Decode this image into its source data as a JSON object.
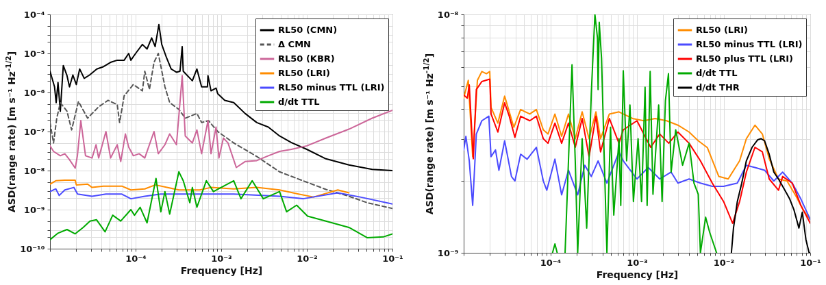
{
  "chart_data": [
    {
      "type": "line",
      "xlabel": "Frequency [Hz]",
      "ylabel": "ASD(range rate) [m s⁻¹ Hz$^{-1/2}$]",
      "log": "xy",
      "grid": true,
      "legend": "top right",
      "xlim": [
        1e-05,
        0.1
      ],
      "ylim": [
        1e-10,
        0.0001
      ],
      "xticks": [
        {
          "value": 1e-05,
          "label": null
        },
        {
          "value": 2e-05,
          "label": null
        },
        {
          "value": 3e-05,
          "label": null
        },
        {
          "value": 4e-05,
          "label": null
        },
        {
          "value": 5e-05,
          "label": null
        },
        {
          "value": 6e-05,
          "label": null
        },
        {
          "value": 7e-05,
          "label": null
        },
        {
          "value": 8e-05,
          "label": null
        },
        {
          "value": 9e-05,
          "label": null
        },
        {
          "value": 0.0001,
          "label": "10⁻⁴"
        },
        {
          "value": 0.0002,
          "label": null
        },
        {
          "value": 0.0003,
          "label": null
        },
        {
          "value": 0.0004,
          "label": null
        },
        {
          "value": 0.0005,
          "label": null
        },
        {
          "value": 0.0006,
          "label": null
        },
        {
          "value": 0.0007,
          "label": null
        },
        {
          "value": 0.0008,
          "label": null
        },
        {
          "value": 0.0009,
          "label": null
        },
        {
          "value": 0.001,
          "label": "10⁻³"
        },
        {
          "value": 0.002,
          "label": null
        },
        {
          "value": 0.003,
          "label": null
        },
        {
          "value": 0.004,
          "label": null
        },
        {
          "value": 0.005,
          "label": null
        },
        {
          "value": 0.006,
          "label": null
        },
        {
          "value": 0.007,
          "label": null
        },
        {
          "value": 0.008,
          "label": null
        },
        {
          "value": 0.009,
          "label": null
        },
        {
          "value": 0.01,
          "label": "10⁻²"
        },
        {
          "value": 0.02,
          "label": null
        },
        {
          "value": 0.03,
          "label": null
        },
        {
          "value": 0.04,
          "label": null
        },
        {
          "value": 0.05,
          "label": null
        },
        {
          "value": 0.06,
          "label": null
        },
        {
          "value": 0.07,
          "label": null
        },
        {
          "value": 0.08,
          "label": null
        },
        {
          "value": 0.09,
          "label": null
        },
        {
          "value": 0.1,
          "label": "10⁻¹"
        }
      ],
      "yticks": [
        {
          "value": 1e-10,
          "label": "10⁻¹⁰"
        },
        {
          "value": 2e-10,
          "label": null
        },
        {
          "value": 3e-10,
          "label": null
        },
        {
          "value": 5e-10,
          "label": null
        },
        {
          "value": 1e-09,
          "label": "10⁻⁹"
        },
        {
          "value": 2e-09,
          "label": null
        },
        {
          "value": 3e-09,
          "label": null
        },
        {
          "value": 5e-09,
          "label": null
        },
        {
          "value": 1e-08,
          "label": "10⁻⁸"
        },
        {
          "value": 2e-08,
          "label": null
        },
        {
          "value": 3e-08,
          "label": null
        },
        {
          "value": 5e-08,
          "label": null
        },
        {
          "value": 1e-07,
          "label": "10⁻⁷"
        },
        {
          "value": 2e-07,
          "label": null
        },
        {
          "value": 3e-07,
          "label": null
        },
        {
          "value": 5e-07,
          "label": null
        },
        {
          "value": 1e-06,
          "label": "10⁻⁶"
        },
        {
          "value": 2e-06,
          "label": null
        },
        {
          "value": 3e-06,
          "label": null
        },
        {
          "value": 5e-06,
          "label": null
        },
        {
          "value": 1e-05,
          "label": "10⁻⁵"
        },
        {
          "value": 2e-05,
          "label": null
        },
        {
          "value": 3e-05,
          "label": null
        },
        {
          "value": 5e-05,
          "label": null
        },
        {
          "value": 0.0001,
          "label": "10⁻⁴"
        }
      ],
      "series": [
        {
          "name": "RL50 (CMN)",
          "color": "#000000",
          "line_style": "solid",
          "x": [
            1e-05,
            1.13e-05,
            1.18e-05,
            1.24e-05,
            1.32e-05,
            1.43e-05,
            1.58e-05,
            1.69e-05,
            1.85e-05,
            2.03e-05,
            2.22e-05,
            2.51e-05,
            2.9e-05,
            3.52e-05,
            4.23e-05,
            5.09e-05,
            6.1e-05,
            7.35e-05,
            8.3e-05,
            8.8e-05,
            0.0001,
            0.00012,
            0.000136,
            0.000154,
            0.000169,
            0.000187,
            0.000202,
            0.00023,
            0.00026,
            0.0003,
            0.00033,
            0.00035,
            0.00036,
            0.00046,
            0.00052,
            0.00059,
            0.00069,
            0.0007,
            0.00076,
            0.00087,
            0.00091,
            0.0011,
            0.0014,
            0.0019,
            0.0026,
            0.00355,
            0.0048,
            0.0066,
            0.01,
            0.0167,
            0.031,
            0.058,
            0.1
          ],
          "values": [
            3.5e-06,
            1.4e-06,
            5.5e-07,
            1.8e-06,
            3.3e-07,
            4.9e-06,
            2.7e-06,
            1.4e-06,
            2.8e-06,
            1.6e-06,
            4e-06,
            2.3e-06,
            2.8e-06,
            4e-06,
            4.6e-06,
            5.9e-06,
            6.7e-06,
            6.7e-06,
            1e-05,
            6.7e-06,
            1e-05,
            1.7e-05,
            1.3e-05,
            2.5e-05,
            1.5e-05,
            5.5e-05,
            1.7e-05,
            7.7e-06,
            4e-06,
            3.3e-06,
            3.5e-06,
            1.5e-05,
            3.5e-06,
            2e-06,
            4e-06,
            1.4e-06,
            1.4e-06,
            2.7e-06,
            1.1e-06,
            1.3e-06,
            9.3e-07,
            6.3e-07,
            5.5e-07,
            2.9e-07,
            1.7e-07,
            1.3e-07,
            7.7e-08,
            5.2e-08,
            3.5e-08,
            2e-08,
            1.4e-08,
            1.07e-08,
            1e-08
          ]
        },
        {
          "name": "Δ CMN",
          "color": "#555555",
          "line_style": "dashed",
          "x": [
            1e-05,
            1.1e-05,
            1.2e-05,
            1.32e-05,
            1.58e-05,
            1.79e-05,
            2.15e-05,
            2.75e-05,
            3.7e-05,
            4.77e-05,
            6.1e-05,
            6.5e-05,
            7.35e-05,
            9.4e-05,
            0.00012,
            0.000128,
            0.000145,
            0.000164,
            0.000184,
            0.00022,
            0.00025,
            0.00032,
            0.00038,
            0.00052,
            0.00059,
            0.00071,
            0.00091,
            0.0014,
            0.0026,
            0.0048,
            0.009,
            0.0167,
            0.031,
            0.051,
            0.1
          ],
          "values": [
            1.7e-07,
            5.1e-08,
            2.2e-07,
            5.5e-07,
            3.3e-07,
            1.1e-07,
            5.9e-07,
            2.2e-07,
            4.3e-07,
            6.3e-07,
            4.9e-07,
            1.7e-07,
            8.2e-07,
            1.6e-06,
            1.1e-06,
            3.5e-06,
            1.2e-06,
            5.9e-06,
            1e-05,
            1.4e-06,
            5.5e-07,
            3.7e-07,
            2.2e-07,
            2.9e-07,
            1.7e-07,
            1.9e-07,
            1e-07,
            5.1e-08,
            2.3e-08,
            9.3e-09,
            5.5e-09,
            3.3e-09,
            2.2e-09,
            1.5e-09,
            1.07e-09
          ]
        },
        {
          "name": "RL50 (KBR)",
          "color": "#cc6699",
          "line_style": "solid",
          "x": [
            1e-05,
            1.1e-05,
            1.32e-05,
            1.49e-05,
            1.69e-05,
            1.97e-05,
            2.09e-05,
            2.29e-05,
            2.6e-05,
            3.1e-05,
            3.45e-05,
            3.7e-05,
            4.5e-05,
            5.1e-05,
            6.1e-05,
            6.7e-05,
            7.6e-05,
            8.3e-05,
            9.4e-05,
            0.00011,
            0.000128,
            0.000164,
            0.000184,
            0.00022,
            0.00025,
            0.0003,
            0.00035,
            0.00038,
            0.00046,
            0.00052,
            0.00059,
            0.0007,
            0.00076,
            0.00087,
            0.00094,
            0.00106,
            0.0012,
            0.0015,
            0.0019,
            0.0026,
            0.00355,
            0.0048,
            0.0066,
            0.01,
            0.0167,
            0.031,
            0.058,
            0.1
          ],
          "values": [
            4.3e-08,
            3.1e-08,
            2.4e-08,
            2.7e-08,
            1.9e-08,
            1.15e-08,
            2.4e-08,
            1.9e-07,
            2.4e-08,
            2.1e-08,
            4.6e-08,
            2.1e-08,
            1e-07,
            2.1e-08,
            4.6e-08,
            1.7e-08,
            8.7e-08,
            4e-08,
            2.4e-08,
            2.7e-08,
            2.1e-08,
            1e-07,
            2.7e-08,
            4.6e-08,
            8.7e-08,
            4.6e-08,
            2.7e-06,
            7.7e-08,
            5.1e-08,
            1.1e-07,
            2.7e-08,
            1.9e-07,
            2.7e-08,
            1.3e-07,
            2.1e-08,
            6.8e-08,
            5.1e-08,
            1.2e-08,
            1.7e-08,
            1.8e-08,
            2.4e-08,
            3.1e-08,
            3.5e-08,
            4.3e-08,
            6.8e-08,
            1.15e-07,
            2.2e-07,
            3.5e-07
          ]
        },
        {
          "name": "RL50 (LRI)",
          "color": "#ff8c00",
          "line_style": "solid",
          "x": [
            1e-05,
            1.17e-05,
            1.49e-05,
            1.97e-05,
            2.03e-05,
            2.75e-05,
            3.1e-05,
            4.2e-05,
            6.9e-05,
            8.8e-05,
            0.000128,
            0.00017,
            0.00032,
            0.00056,
            0.00076,
            0.0014,
            0.0026,
            0.0048,
            0.008,
            0.012,
            0.023,
            0.031
          ],
          "values": [
            4.5e-09,
            5.5e-09,
            5.7e-09,
            5.7e-09,
            4.3e-09,
            4.5e-09,
            3.7e-09,
            4e-09,
            4e-09,
            3.2e-09,
            3.4e-09,
            4.3e-09,
            3.2e-09,
            3.2e-09,
            3.7e-09,
            3.4e-09,
            3.7e-09,
            3.2e-09,
            2.5e-09,
            2.1e-09,
            3.2e-09,
            2.7e-09
          ]
        },
        {
          "name": "RL50 minus TTL (LRI)",
          "color": "#4b4bff",
          "line_style": "solid",
          "x": [
            1e-05,
            1.17e-05,
            1.28e-05,
            1.49e-05,
            1.9e-05,
            2.1e-05,
            3.1e-05,
            4.5e-05,
            6.9e-05,
            8.8e-05,
            0.000128,
            0.000196,
            0.00032,
            0.00056,
            0.0014,
            0.0048,
            0.009,
            0.023,
            0.042,
            0.1
          ],
          "values": [
            2.9e-09,
            3.4e-09,
            2.3e-09,
            3.2e-09,
            3.7e-09,
            2.5e-09,
            2.2e-09,
            2.5e-09,
            2.5e-09,
            1.9e-09,
            2.2e-09,
            2.5e-09,
            2.5e-09,
            2.5e-09,
            2.5e-09,
            2.2e-09,
            1.9e-09,
            2.7e-09,
            2.1e-09,
            1.4e-09
          ]
        },
        {
          "name": "d/dt TTL",
          "color": "#00aa00",
          "line_style": "solid",
          "x": [
            1e-05,
            1.24e-05,
            1.58e-05,
            1.97e-05,
            2.44e-05,
            2.93e-05,
            3.5e-05,
            4.4e-05,
            5.4e-05,
            6.7e-05,
            8.8e-05,
            9.7e-05,
            0.000113,
            0.000136,
            0.000173,
            0.000197,
            0.00022,
            0.00025,
            0.00032,
            0.00036,
            0.00043,
            0.00046,
            0.00052,
            0.00067,
            0.00081,
            0.0014,
            0.0017,
            0.0023,
            0.0031,
            0.0048,
            0.0058,
            0.0076,
            0.0102,
            0.0167,
            0.031,
            0.051,
            0.078,
            0.1
          ],
          "values": [
            1.7e-10,
            2.5e-10,
            3.1e-10,
            2.4e-10,
            3.5e-10,
            5.1e-10,
            5.5e-10,
            2.7e-10,
            7.2e-10,
            5.1e-10,
            1e-09,
            7.2e-10,
            1.15e-09,
            4.6e-10,
            6.3e-09,
            8.8e-10,
            2.9e-09,
            7.7e-10,
            9.3e-09,
            5.5e-09,
            1.5e-09,
            3.7e-09,
            1.15e-09,
            5.5e-09,
            2.9e-09,
            5.5e-09,
            1.9e-09,
            5.5e-09,
            1.9e-09,
            2.9e-09,
            8.8e-10,
            1.3e-09,
            6.8e-10,
            5.1e-10,
            3.5e-10,
            1.9e-10,
            2e-10,
            2.4e-10
          ]
        }
      ]
    },
    {
      "type": "line",
      "xlabel": "Frequency [Hz]",
      "ylabel": "ASD(range rate) [m s⁻¹ Hz$^{-1/2}$]",
      "log": "xy",
      "grid": true,
      "legend": "top right",
      "xlim": [
        1e-05,
        0.1
      ],
      "ylim": [
        1e-09,
        1e-08
      ],
      "xticks": [
        {
          "value": 1e-05,
          "label": null
        },
        {
          "value": 2e-05,
          "label": null
        },
        {
          "value": 3e-05,
          "label": null
        },
        {
          "value": 4e-05,
          "label": null
        },
        {
          "value": 5e-05,
          "label": null
        },
        {
          "value": 6e-05,
          "label": null
        },
        {
          "value": 7e-05,
          "label": null
        },
        {
          "value": 8e-05,
          "label": null
        },
        {
          "value": 9e-05,
          "label": null
        },
        {
          "value": 0.0001,
          "label": "10⁻⁴"
        },
        {
          "value": 0.0002,
          "label": null
        },
        {
          "value": 0.0003,
          "label": null
        },
        {
          "value": 0.0004,
          "label": null
        },
        {
          "value": 0.0005,
          "label": null
        },
        {
          "value": 0.0006,
          "label": null
        },
        {
          "value": 0.0007,
          "label": null
        },
        {
          "value": 0.0008,
          "label": null
        },
        {
          "value": 0.0009,
          "label": null
        },
        {
          "value": 0.001,
          "label": "10⁻³"
        },
        {
          "value": 0.002,
          "label": null
        },
        {
          "value": 0.003,
          "label": null
        },
        {
          "value": 0.004,
          "label": null
        },
        {
          "value": 0.005,
          "label": null
        },
        {
          "value": 0.006,
          "label": null
        },
        {
          "value": 0.007,
          "label": null
        },
        {
          "value": 0.008,
          "label": null
        },
        {
          "value": 0.009,
          "label": null
        },
        {
          "value": 0.01,
          "label": "10⁻²"
        },
        {
          "value": 0.02,
          "label": null
        },
        {
          "value": 0.03,
          "label": null
        },
        {
          "value": 0.04,
          "label": null
        },
        {
          "value": 0.05,
          "label": null
        },
        {
          "value": 0.06,
          "label": null
        },
        {
          "value": 0.07,
          "label": null
        },
        {
          "value": 0.08,
          "label": null
        },
        {
          "value": 0.09,
          "label": null
        },
        {
          "value": 0.1,
          "label": "10⁻¹"
        }
      ],
      "yticks": [
        {
          "value": 1e-09,
          "label": "10⁻⁹"
        },
        {
          "value": 2e-09,
          "label": null
        },
        {
          "value": 3e-09,
          "label": null
        },
        {
          "value": 4e-09,
          "label": null
        },
        {
          "value": 5e-09,
          "label": null
        },
        {
          "value": 6e-09,
          "label": null
        },
        {
          "value": 7e-09,
          "label": null
        },
        {
          "value": 8e-09,
          "label": null
        },
        {
          "value": 9e-09,
          "label": null
        },
        {
          "value": 1e-08,
          "label": "10⁻⁸"
        }
      ],
      "series": [
        {
          "name": "RL50 (LRI)",
          "color": "#ff8c00",
          "line_style": "solid",
          "x": [
            1e-05,
            1.06e-05,
            1.13e-05,
            1.27e-05,
            1.44e-05,
            1.62e-05,
            1.83e-05,
            2e-05,
            2.07e-05,
            2.48e-05,
            2.97e-05,
            3.36e-05,
            3.79e-05,
            4.54e-05,
            5.8e-05,
            6.9e-05,
            8.3e-05,
            9.4e-05,
            0.000113,
            0.000135,
            0.000162,
            0.000194,
            0.000233,
            0.00028,
            0.000336,
            0.00038,
            0.00048,
            0.00062,
            0.00089,
            0.0012,
            0.00162,
            0.0022,
            0.00297,
            0.004,
            0.0051,
            0.0065,
            0.0088,
            0.0113,
            0.0153,
            0.0183,
            0.023,
            0.028,
            0.0336,
            0.043,
            0.054,
            0.069,
            0.083,
            0.1
          ],
          "values": [
            4.45e-09,
            4.84e-09,
            5.29e-09,
            2.53e-09,
            5.29e-09,
            5.76e-09,
            5.64e-09,
            5.76e-09,
            4.07e-09,
            3.5e-09,
            4.54e-09,
            3.9e-09,
            3.36e-09,
            3.99e-09,
            3.82e-09,
            3.99e-09,
            3.28e-09,
            3.15e-09,
            3.82e-09,
            3.08e-09,
            3.82e-09,
            3.01e-09,
            3.9e-09,
            3.01e-09,
            3.9e-09,
            3.01e-09,
            3.82e-09,
            3.9e-09,
            3.66e-09,
            3.58e-09,
            3.66e-09,
            3.58e-09,
            3.43e-09,
            3.21e-09,
            2.95e-09,
            2.76e-09,
            2.09e-09,
            2.04e-09,
            2.43e-09,
            3.01e-09,
            3.43e-09,
            3.15e-09,
            2.48e-09,
            2.04e-09,
            2e-09,
            1.72e-09,
            1.51e-09,
            1.38e-09
          ]
        },
        {
          "name": "RL50 minus TTL (LRI)",
          "color": "#4b4bff",
          "line_style": "solid",
          "x": [
            1e-05,
            1.06e-05,
            1.16e-05,
            1.27e-05,
            1.4e-05,
            1.62e-05,
            1.95e-05,
            2.07e-05,
            2.33e-05,
            2.55e-05,
            2.97e-05,
            3.56e-05,
            3.9e-05,
            4.54e-05,
            5.4e-05,
            6.9e-05,
            8.3e-05,
            9.1e-05,
            0.000113,
            0.000135,
            0.000162,
            0.000207,
            0.00025,
            0.000297,
            0.000356,
            0.00045,
            0.00062,
            0.000695,
            0.001,
            0.00135,
            0.00183,
            0.00248,
            0.00297,
            0.004,
            0.0054,
            0.0074,
            0.01,
            0.0144,
            0.0183,
            0.023,
            0.0297,
            0.038,
            0.048,
            0.062,
            0.078,
            0.1
          ],
          "values": [
            2.7e-09,
            3.08e-09,
            2.43e-09,
            1.58e-09,
            3.15e-09,
            3.58e-09,
            3.74e-09,
            2.53e-09,
            2.7e-09,
            2.22e-09,
            2.95e-09,
            2.09e-09,
            2e-09,
            2.59e-09,
            2.47e-09,
            2.77e-09,
            2e-09,
            1.83e-09,
            2.47e-09,
            1.75e-09,
            2.22e-09,
            1.75e-09,
            2.33e-09,
            2.09e-09,
            2.43e-09,
            1.96e-09,
            2.65e-09,
            2.43e-09,
            2.04e-09,
            2.28e-09,
            2.04e-09,
            2.18e-09,
            1.96e-09,
            2.04e-09,
            1.96e-09,
            1.9e-09,
            1.9e-09,
            1.96e-09,
            2.33e-09,
            2.28e-09,
            2.22e-09,
            2e-09,
            2.18e-09,
            1.96e-09,
            1.68e-09,
            1.38e-09
          ]
        },
        {
          "name": "RL50 plus TTL (LRI)",
          "color": "#ff0000",
          "line_style": "solid",
          "x": [
            1e-05,
            1.1e-05,
            1.16e-05,
            1.29e-05,
            1.4e-05,
            1.62e-05,
            2e-05,
            2.07e-05,
            2.48e-05,
            2.97e-05,
            3.36e-05,
            3.9e-05,
            4.54e-05,
            5.8e-05,
            6.9e-05,
            8.3e-05,
            9.4e-05,
            0.000113,
            0.000135,
            0.000162,
            0.000194,
            0.000233,
            0.00028,
            0.000336,
            0.00038,
            0.00048,
            0.00062,
            0.000695,
            0.001,
            0.00144,
            0.00183,
            0.00233,
            0.00297,
            0.004,
            0.0054,
            0.0074,
            0.01,
            0.0127,
            0.0153,
            0.0183,
            0.023,
            0.028,
            0.0336,
            0.043,
            0.048,
            0.062,
            0.078,
            0.1
          ],
          "values": [
            4.6e-09,
            4.45e-09,
            5.06e-09,
            2.48e-09,
            4.84e-09,
            5.23e-09,
            5.35e-09,
            3.82e-09,
            3.21e-09,
            4.26e-09,
            3.74e-09,
            3.05e-09,
            3.74e-09,
            3.58e-09,
            3.74e-09,
            3.01e-09,
            2.88e-09,
            3.5e-09,
            2.88e-09,
            3.5e-09,
            2.77e-09,
            3.66e-09,
            2.53e-09,
            3.74e-09,
            2.65e-09,
            3.66e-09,
            2.88e-09,
            3.28e-09,
            3.58e-09,
            2.77e-09,
            3.15e-09,
            2.88e-09,
            3.21e-09,
            2.88e-09,
            2.43e-09,
            1.96e-09,
            1.64e-09,
            1.33e-09,
            1.64e-09,
            2.18e-09,
            2.77e-09,
            2.65e-09,
            2.04e-09,
            1.83e-09,
            2.09e-09,
            1.96e-09,
            1.58e-09,
            1.33e-09
          ]
        },
        {
          "name": "d/dt TTL",
          "color": "#00aa00",
          "line_style": "solid",
          "x": [
            0.000106,
            0.000113,
            0.00012,
            0.000134,
            0.000148,
            0.000178,
            0.000194,
            0.000207,
            0.000233,
            0.000263,
            0.000297,
            0.000327,
            0.00035,
            0.000356,
            0.000367,
            0.00039,
            0.00042,
            0.00045,
            0.000495,
            0.00054,
            0.00062,
            0.00065,
            0.000695,
            0.00076,
            0.00083,
            0.00091,
            0.00103,
            0.00113,
            0.00124,
            0.00131,
            0.00142,
            0.00153,
            0.00178,
            0.00195,
            0.00213,
            0.00231,
            0.00248,
            0.0028,
            0.00336,
            0.004,
            0.00455,
            0.0051,
            0.0054,
            0.0062,
            0.0069,
            0.0083
          ],
          "values": [
            1e-09,
            1.09e-09,
            1e-09,
            null,
            1e-09,
            6.15e-09,
            2.43e-09,
            1e-09,
            3.01e-09,
            1.27e-09,
            4.64e-09,
            1e-08,
            7.97e-09,
            4.84e-09,
            9.27e-09,
            6.56e-09,
            2.43e-09,
            1e-09,
            3.36e-09,
            1.44e-09,
            3.01e-09,
            1.58e-09,
            5.8e-09,
            2.43e-09,
            4.17e-09,
            1.64e-09,
            3.01e-09,
            1.64e-09,
            4.95e-09,
            1.58e-09,
            5.76e-09,
            1.76e-09,
            4.17e-09,
            1.64e-09,
            4.35e-09,
            5.64e-09,
            2.18e-09,
            3.28e-09,
            2.33e-09,
            2.88e-09,
            1.96e-09,
            1.76e-09,
            1e-09,
            1.41e-09,
            1.22e-09,
            1e-09
          ]
        },
        {
          "name": "d/dt THR",
          "color": "#000000",
          "line_style": "solid",
          "x": [
            0.0123,
            0.013,
            0.0144,
            0.0162,
            0.0183,
            0.0213,
            0.0248,
            0.027,
            0.0297,
            0.0336,
            0.038,
            0.043,
            0.051,
            0.058,
            0.065,
            0.074,
            0.081,
            0.089,
            0.097,
            0.1
          ],
          "values": [
            1e-09,
            1.27e-09,
            1.64e-09,
            1.96e-09,
            2.43e-09,
            2.77e-09,
            2.98e-09,
            3.01e-09,
            2.95e-09,
            2.59e-09,
            2.18e-09,
            2.04e-09,
            1.83e-09,
            1.68e-09,
            1.51e-09,
            1.27e-09,
            1.48e-09,
            1.14e-09,
            1e-09,
            1e-09
          ]
        }
      ]
    }
  ]
}
